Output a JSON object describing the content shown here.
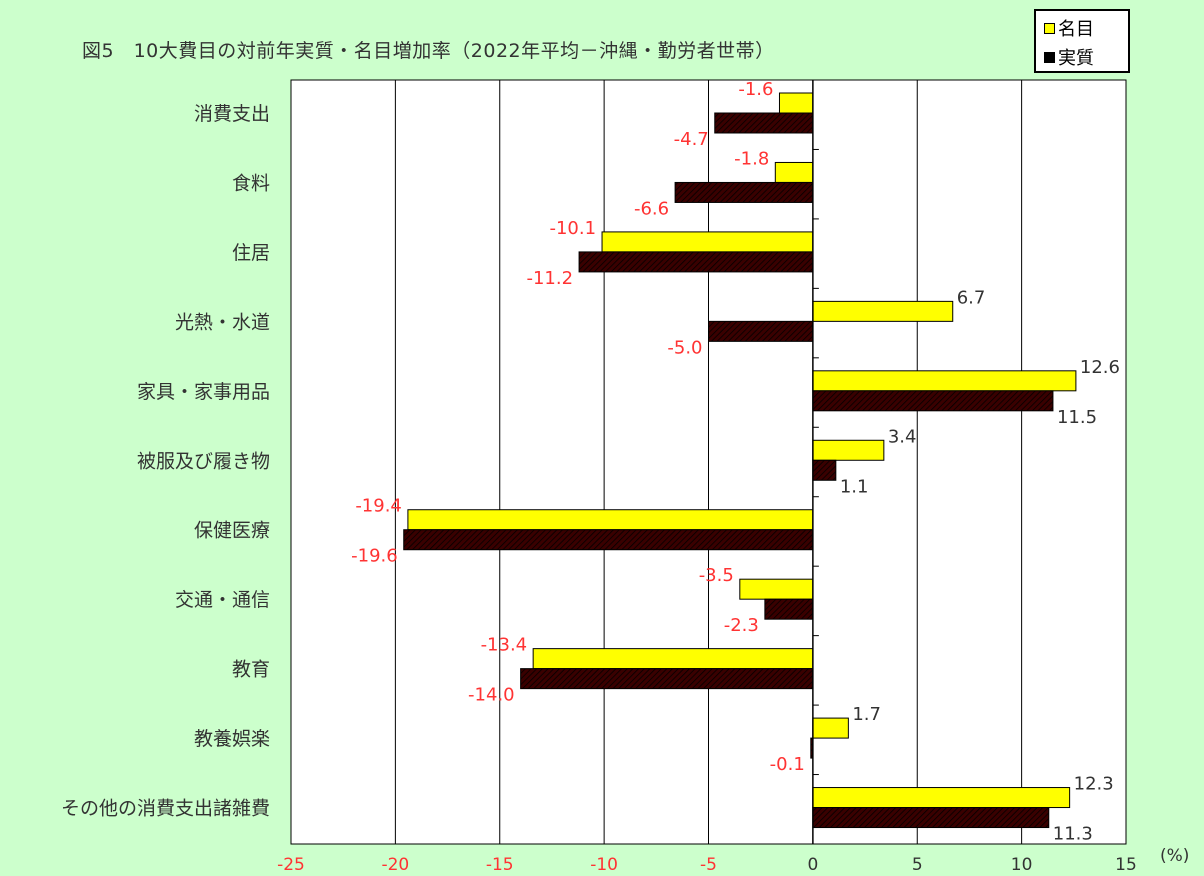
{
  "title": "図5　10大費目の対前年実質・名目増加率（2022年平均－沖縄・勤労者世帯）",
  "unit_label": "(%)",
  "colors": {
    "background": "#ccffcc",
    "plot_bg": "#ffffff",
    "nominal": "#ffff00",
    "real": "#3a0000",
    "negative_label": "#ff3333",
    "positive_label": "#333333",
    "negative_tick": "#ff3333"
  },
  "chart_data": {
    "type": "bar",
    "orientation": "horizontal",
    "categories": [
      "消費支出",
      "食料",
      "住居",
      "光熱・水道",
      "家具・家事用品",
      "被服及び履き物",
      "保健医療",
      "交通・通信",
      "教育",
      "教養娯楽",
      "その他の消費支出諸雑費"
    ],
    "series": [
      {
        "name": "名目",
        "values": [
          -1.6,
          -1.8,
          -10.1,
          6.7,
          12.6,
          3.4,
          -19.4,
          -3.5,
          -13.4,
          1.7,
          12.3
        ],
        "labels": [
          "-1.6",
          "-1.8",
          "-10.1",
          "6.7",
          "12.6",
          "3.4",
          "-19.4",
          "-3.5",
          "-13.4",
          "1.7",
          "12.3"
        ]
      },
      {
        "name": "実質",
        "values": [
          -4.7,
          -6.6,
          -11.2,
          -5.0,
          11.5,
          1.1,
          -19.6,
          -2.3,
          -14.0,
          -0.1,
          11.3
        ],
        "labels": [
          "-4.7",
          "-6.6",
          "-11.2",
          "-5.0",
          "11.5",
          "1.1",
          "-19.6",
          "-2.3",
          "-14.0",
          "-0.1",
          "11.3"
        ]
      }
    ],
    "xlim": [
      -25,
      15
    ],
    "xticks": [
      -25,
      -20,
      -15,
      -10,
      -5,
      0,
      5,
      10,
      15
    ],
    "xtick_labels": [
      "-25",
      "-20",
      "-15",
      "-10",
      "-5",
      "0",
      "5",
      "10",
      "15"
    ],
    "grid": "vertical",
    "legend_position": "top-right"
  }
}
